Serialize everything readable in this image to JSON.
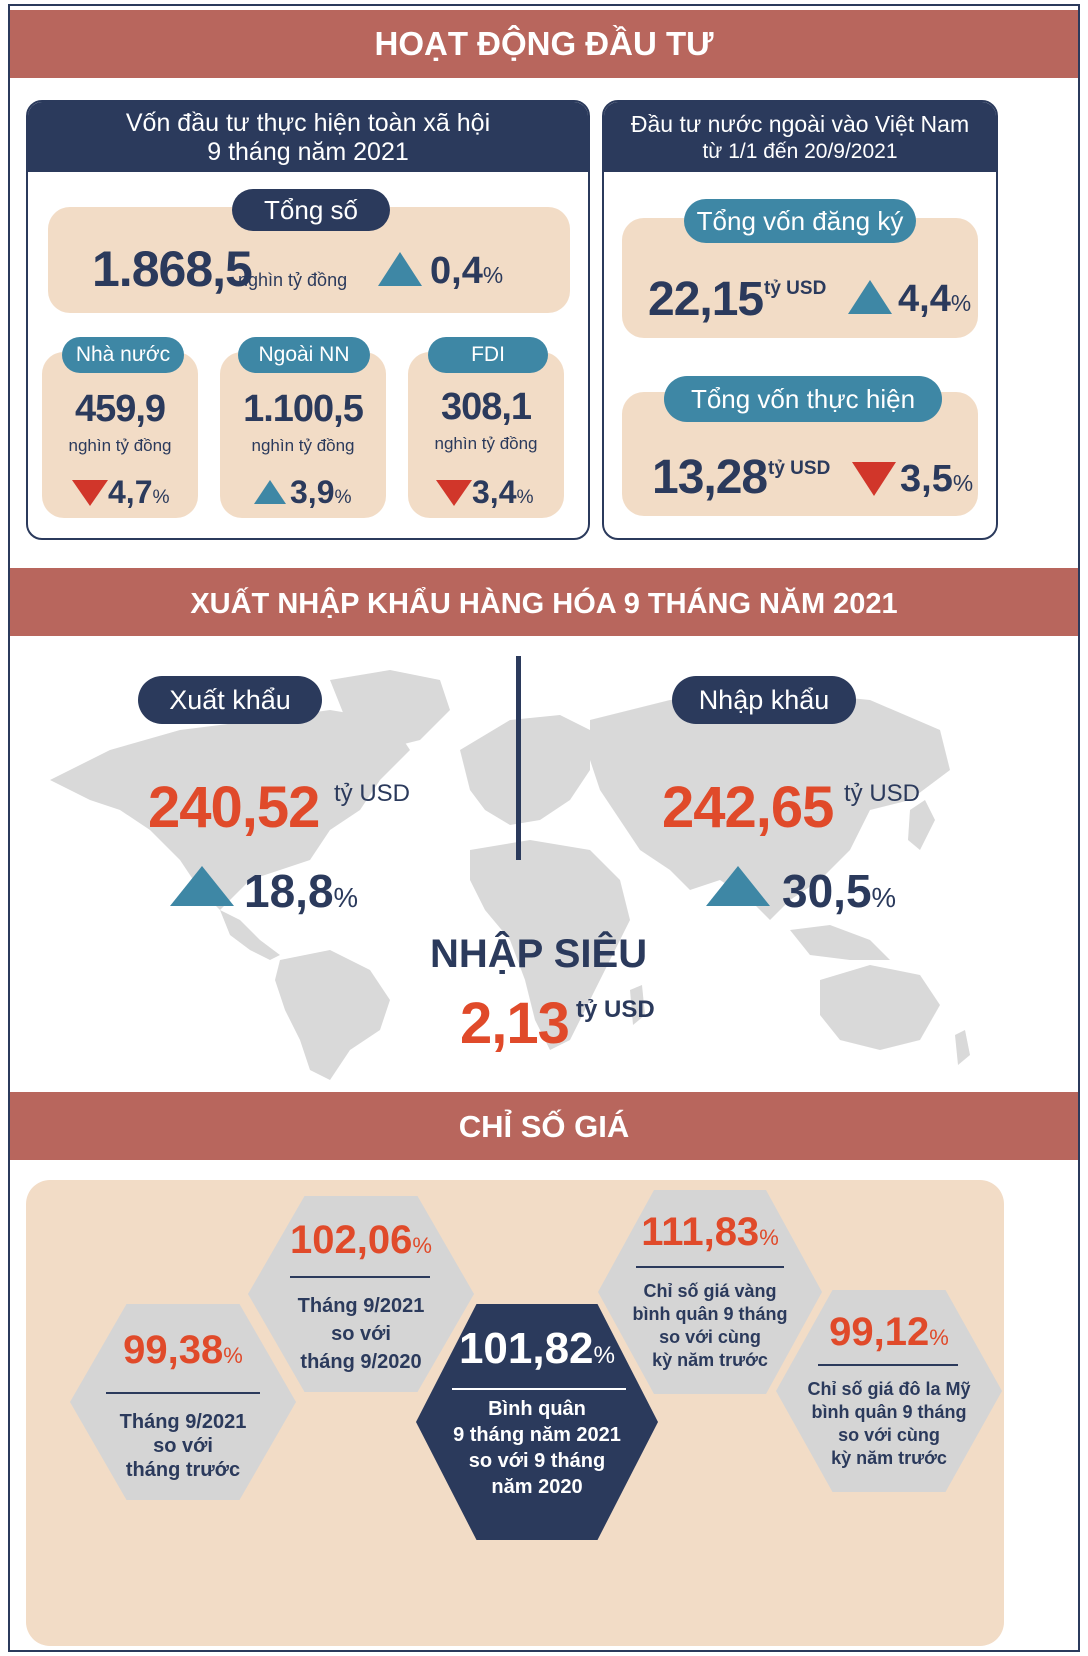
{
  "section_investment": {
    "title": "HOẠT ĐỘNG ĐẦU TƯ",
    "social": {
      "title_line1": "Vốn đầu tư thực hiện toàn xã hội",
      "title_line2": "9 tháng năm 2021",
      "total_label": "Tổng số",
      "total_value": "1.868,5",
      "total_unit": "nghìn tỷ đồng",
      "total_change": "0,4",
      "items": [
        {
          "label": "Nhà nước",
          "value": "459,9",
          "unit": "nghìn tỷ đồng",
          "change": "4,7",
          "direction": "down"
        },
        {
          "label": "Ngoài NN",
          "value": "1.100,5",
          "unit": "nghìn tỷ đồng",
          "change": "3,9",
          "direction": "up"
        },
        {
          "label": "FDI",
          "value": "308,1",
          "unit": "nghìn tỷ đồng",
          "change": "3,4",
          "direction": "down"
        }
      ]
    },
    "foreign": {
      "title_line1": "Đầu tư nước ngoài vào Việt Nam",
      "title_line2": "từ 1/1 đến 20/9/2021",
      "registered_label": "Tổng vốn đăng ký",
      "registered_value": "22,15",
      "registered_unit": "tỷ USD",
      "registered_change": "4,4",
      "implemented_label": "Tổng vốn thực hiện",
      "implemented_value": "13,28",
      "implemented_unit": "tỷ USD",
      "implemented_change": "3,5"
    }
  },
  "section_trade": {
    "title": "XUẤT NHẬP KHẨU HÀNG HÓA  9 THÁNG NĂM 2021",
    "export_label": "Xuất khẩu",
    "export_value": "240,52",
    "export_unit": "tỷ USD",
    "export_change": "18,8",
    "import_label": "Nhập khẩu",
    "import_value": "242,65",
    "import_unit": "tỷ USD",
    "import_change": "30,5",
    "deficit_label": "NHẬP SIÊU",
    "deficit_value": "2,13",
    "deficit_unit": "tỷ USD"
  },
  "section_price": {
    "title": "CHỈ SỐ GIÁ",
    "hex1": {
      "value": "99,38",
      "line1": "Tháng 9/2021",
      "line2": "so với",
      "line3": "tháng trước"
    },
    "hex2": {
      "value": "102,06",
      "line1": "Tháng 9/2021",
      "line2": "so với",
      "line3": "tháng 9/2020"
    },
    "hex3": {
      "value": "101,82",
      "line1": "Bình quân",
      "line2": "9 tháng năm 2021",
      "line3": "so với 9 tháng",
      "line4": "năm 2020"
    },
    "hex4": {
      "value": "111,83",
      "line1": "Chỉ số giá vàng",
      "line2": "bình quân 9 tháng",
      "line3": "so với cùng",
      "line4": "kỳ năm trước"
    },
    "hex5": {
      "value": "99,12",
      "line1": "Chỉ số giá đô la Mỹ",
      "line2": "bình quân 9 tháng",
      "line3": "so với cùng",
      "line4": "kỳ năm trước"
    },
    "percent_sign": "%"
  },
  "colors": {
    "navy": "#2b3a5c",
    "banner": "#b8665d",
    "card": "#f2dcc6",
    "accent_blue": "#3e87a5",
    "red": "#d1362a",
    "orange": "#e04a2a",
    "map_gray": "#d9d9d9",
    "hex_gray": "#d5d5d5"
  }
}
